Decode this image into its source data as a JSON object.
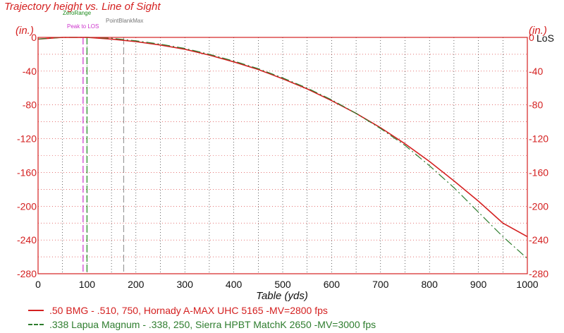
{
  "chart_data": {
    "type": "line",
    "title": "Trajectory height vs. Line of Sight",
    "xlabel": "Table (yds)",
    "ylabel_left": "(in.)",
    "ylabel_right": "(in.)",
    "los_label": "LoS",
    "xlim": [
      0,
      1000
    ],
    "ylim": [
      -280,
      0
    ],
    "xticks": [
      0,
      100,
      200,
      300,
      400,
      500,
      600,
      700,
      800,
      900,
      1000
    ],
    "yticks": [
      0,
      -40,
      -80,
      -120,
      -160,
      -200,
      -240,
      -280
    ],
    "grid": true,
    "markers": [
      {
        "name": "ZeroRange",
        "x": 100,
        "color": "#1a8a1a"
      },
      {
        "name": "Peak to LOS",
        "x": 92,
        "color": "#cc33cc"
      },
      {
        "name": "PointBlankMax",
        "x": 175,
        "color": "#999999"
      }
    ],
    "series": [
      {
        "name": ".50 BMG - .510, 750, Hornady A-MAX UHC 5165 -MV=2800 fps",
        "color": "#d42020",
        "dash": "solid",
        "x": [
          0,
          50,
          100,
          150,
          200,
          250,
          300,
          350,
          400,
          450,
          500,
          550,
          600,
          650,
          700,
          750,
          800,
          850,
          900,
          950,
          1000
        ],
        "y": [
          -2,
          0,
          0,
          -2,
          -5,
          -9,
          -14,
          -21,
          -29,
          -38,
          -49,
          -61,
          -75,
          -90,
          -107,
          -126,
          -147,
          -170,
          -194,
          -220,
          -236
        ]
      },
      {
        "name": ".338 Lapua Magnum - .338, 250, Sierra HPBT MatchK 2650 -MV=3000 fps",
        "color": "#2e7d2e",
        "dash": "dashdot",
        "x": [
          0,
          50,
          100,
          150,
          200,
          250,
          300,
          350,
          400,
          450,
          500,
          550,
          600,
          650,
          700,
          750,
          800,
          850,
          900,
          950,
          1000
        ],
        "y": [
          -2,
          0,
          0,
          -1,
          -4,
          -8,
          -13,
          -20,
          -28,
          -37,
          -48,
          -60,
          -74,
          -90,
          -108,
          -128,
          -152,
          -178,
          -207,
          -236,
          -262
        ]
      }
    ]
  }
}
